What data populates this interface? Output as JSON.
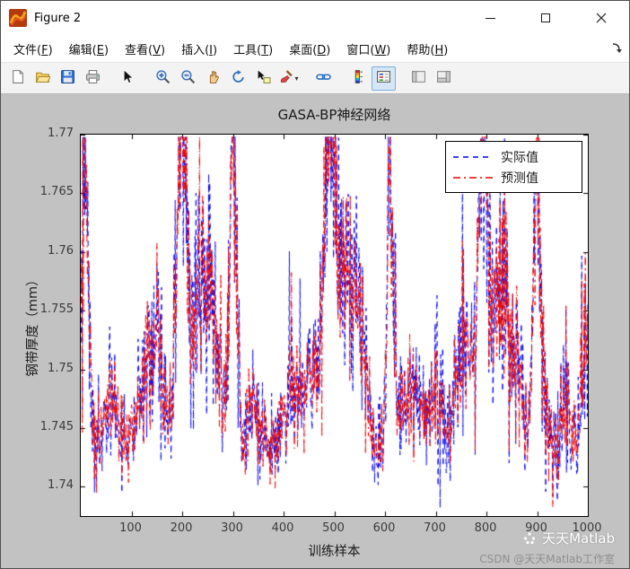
{
  "window": {
    "title": "Figure 2"
  },
  "menu": {
    "items": [
      {
        "name": "file",
        "pre": "文件(",
        "key": "F",
        "suf": ")"
      },
      {
        "name": "edit",
        "pre": "编辑(",
        "key": "E",
        "suf": ")"
      },
      {
        "name": "view",
        "pre": "查看(",
        "key": "V",
        "suf": ")"
      },
      {
        "name": "insert",
        "pre": "插入(",
        "key": "I",
        "suf": ")"
      },
      {
        "name": "tools",
        "pre": "工具(",
        "key": "T",
        "suf": ")"
      },
      {
        "name": "desktop",
        "pre": "桌面(",
        "key": "D",
        "suf": ")"
      },
      {
        "name": "window",
        "pre": "窗口(",
        "key": "W",
        "suf": ")"
      },
      {
        "name": "help",
        "pre": "帮助(",
        "key": "H",
        "suf": ")"
      }
    ]
  },
  "toolbar": {
    "buttons": [
      {
        "name": "new-figure"
      },
      {
        "name": "open-file"
      },
      {
        "name": "save-figure"
      },
      {
        "name": "print-figure"
      },
      {
        "name": "sep"
      },
      {
        "name": "pointer"
      },
      {
        "name": "sep"
      },
      {
        "name": "zoom-in"
      },
      {
        "name": "zoom-out"
      },
      {
        "name": "pan"
      },
      {
        "name": "rotate-3d"
      },
      {
        "name": "data-cursor"
      },
      {
        "name": "brush",
        "caret": true
      },
      {
        "name": "sep"
      },
      {
        "name": "link-plots"
      },
      {
        "name": "sep"
      },
      {
        "name": "insert-colorbar"
      },
      {
        "name": "insert-legend",
        "active": true
      },
      {
        "name": "sep"
      },
      {
        "name": "plottools-hide"
      },
      {
        "name": "plottools-show"
      }
    ]
  },
  "chart_data": {
    "type": "line",
    "title": "GASA-BP神经网络",
    "xlabel": "训练样本",
    "ylabel": "钢带厚度（mm）",
    "xlim": [
      0,
      1000
    ],
    "ylim": [
      1.7375,
      1.77
    ],
    "xticks": [
      100,
      200,
      300,
      400,
      500,
      600,
      700,
      800,
      900,
      1000
    ],
    "yticks": [
      1.74,
      1.745,
      1.75,
      1.755,
      1.76,
      1.765,
      1.77
    ],
    "ytick_labels": [
      "1.74",
      "1.745",
      "1.75",
      "1.755",
      "1.76",
      "1.765",
      "1.77"
    ],
    "grid": false,
    "legend_position": "northeast",
    "series": [
      {
        "name": "实际值",
        "color": "#0000ee",
        "dash": [
          6,
          5
        ]
      },
      {
        "name": "预测值",
        "color": "#ee0000",
        "dash": [
          8,
          4,
          2,
          4
        ]
      }
    ],
    "generator": {
      "seed": 42,
      "n": 1000,
      "baseline": 1.7435,
      "noise_sd": 0.002,
      "spike_prob": 0.1,
      "spike_amp": 0.009,
      "peaks": [
        [
          8,
          7,
          0.026
        ],
        [
          60,
          14,
          0.004
        ],
        [
          128,
          16,
          0.006
        ],
        [
          152,
          10,
          0.007
        ],
        [
          197,
          9,
          0.026
        ],
        [
          232,
          20,
          0.013
        ],
        [
          262,
          11,
          0.008
        ],
        [
          300,
          7,
          0.025
        ],
        [
          342,
          10,
          0.004
        ],
        [
          420,
          16,
          0.005
        ],
        [
          455,
          10,
          0.007
        ],
        [
          489,
          11,
          0.026
        ],
        [
          520,
          17,
          0.014
        ],
        [
          553,
          11,
          0.008
        ],
        [
          610,
          6,
          0.023
        ],
        [
          655,
          18,
          0.005
        ],
        [
          700,
          14,
          0.004
        ],
        [
          755,
          14,
          0.009
        ],
        [
          793,
          9,
          0.026
        ],
        [
          828,
          14,
          0.015
        ],
        [
          858,
          9,
          0.008
        ],
        [
          900,
          8,
          0.022
        ],
        [
          955,
          9,
          0.004
        ],
        [
          995,
          8,
          0.012
        ]
      ]
    }
  },
  "watermark": {
    "line1": "天天Matlab",
    "line2": "CSDN @天天Matlab工作室"
  }
}
